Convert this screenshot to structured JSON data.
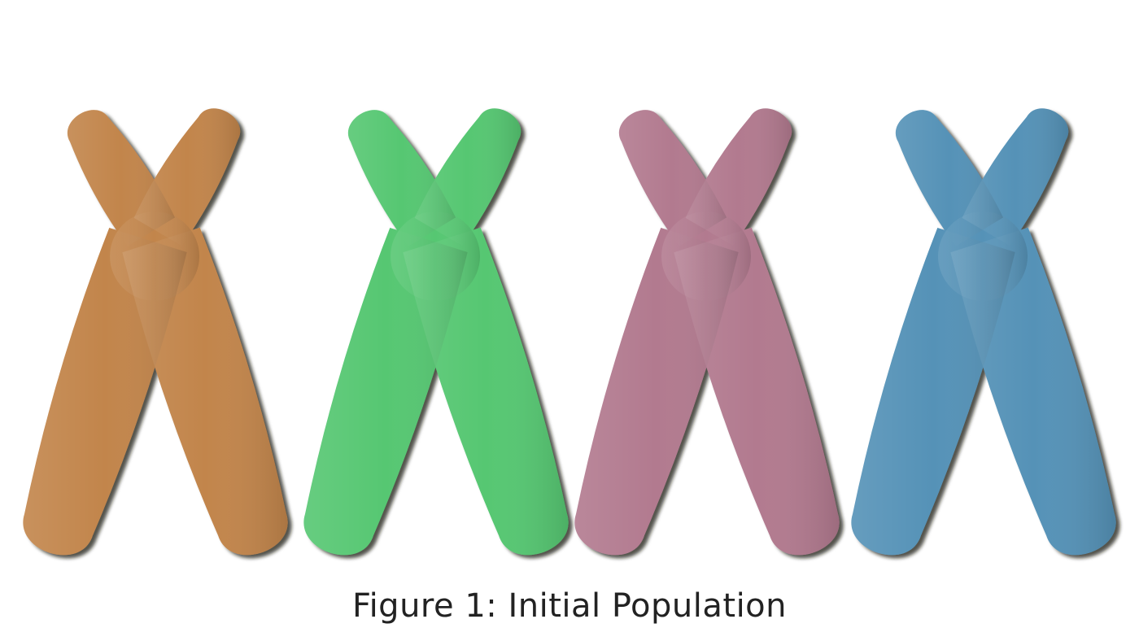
{
  "caption": "Figure 1: Initial Population",
  "chromosomes": [
    {
      "name": "chromosome-orange",
      "color": "#c2854b"
    },
    {
      "name": "chromosome-green",
      "color": "#56c772"
    },
    {
      "name": "chromosome-pink",
      "color": "#b27a8f"
    },
    {
      "name": "chromosome-blue",
      "color": "#5592b7"
    }
  ]
}
